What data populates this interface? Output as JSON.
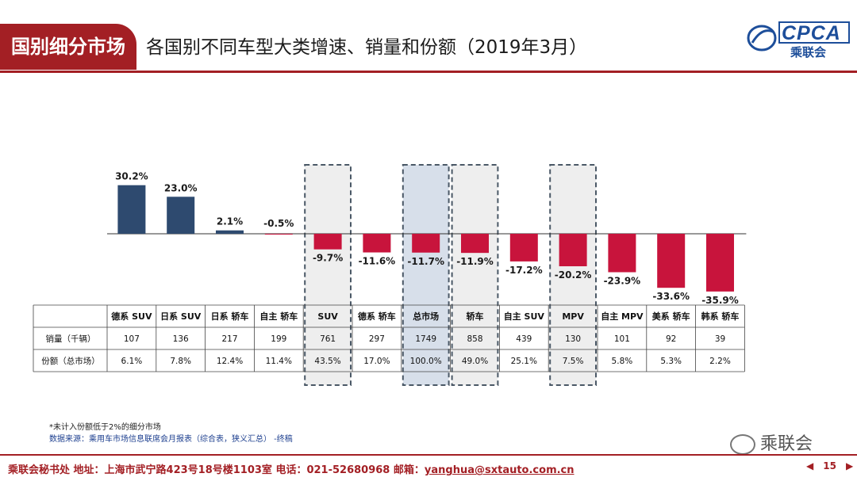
{
  "header": {
    "tag": "国别细分市场",
    "title": "各国别不同车型大类增速、销量和份额（2019年3月）",
    "logo_text": "CPCA",
    "logo_sub": "乘联会"
  },
  "chart_data": {
    "type": "bar",
    "categories": [
      "德系 SUV",
      "日系 SUV",
      "日系 轿车",
      "自主 轿车",
      "SUV",
      "德系 轿车",
      "总市场",
      "轿车",
      "自主 SUV",
      "MPV",
      "自主 MPV",
      "美系 轿车",
      "韩系 轿车"
    ],
    "growth_labels": [
      "30.2%",
      "23.0%",
      "2.1%",
      "-0.5%",
      "-9.7%",
      "-11.6%",
      "-11.7%",
      "-11.9%",
      "-17.2%",
      "-20.2%",
      "-23.9%",
      "-33.6%",
      "-35.9%"
    ],
    "growth": [
      30.2,
      23.0,
      2.1,
      -0.5,
      -9.7,
      -11.6,
      -11.7,
      -11.9,
      -17.2,
      -20.2,
      -23.9,
      -33.6,
      -35.9
    ],
    "highlighted": [
      "SUV",
      "总市场",
      "轿车",
      "MPV"
    ],
    "table": {
      "rows": [
        {
          "label": "销量（千辆）",
          "values": [
            "107",
            "136",
            "217",
            "199",
            "761",
            "297",
            "1749",
            "858",
            "439",
            "130",
            "101",
            "92",
            "39"
          ]
        },
        {
          "label": "份额（总市场）",
          "values": [
            "6.1%",
            "7.8%",
            "12.4%",
            "11.4%",
            "43.5%",
            "17.0%",
            "100.0%",
            "49.0%",
            "25.1%",
            "7.5%",
            "5.8%",
            "5.3%",
            "2.2%"
          ]
        }
      ]
    },
    "colors": {
      "positive": "#2e4a6f",
      "negative": "#c8143c",
      "highlight_fill": "#eeeeee",
      "total_fill": "#d7dfea"
    }
  },
  "notes": {
    "note1": "*未计入份额低于2%的细分市场",
    "note2": "数据来源：乘用车市场信息联席会月报表（综合表，狭义汇总）    -终稿"
  },
  "watermark": "乘联会",
  "footer": {
    "text": "乘联会秘书处   地址：上海市武宁路423号18号楼1103室  电话：021-52680968   邮箱：",
    "email": "yanghua@sxtauto.com.cn",
    "page": "15"
  }
}
